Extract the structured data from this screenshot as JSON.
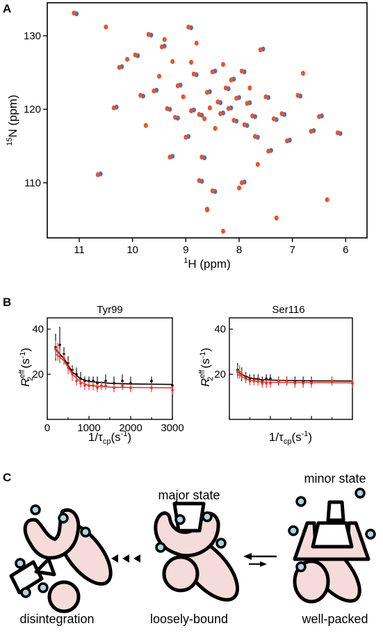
{
  "panels": {
    "A": {
      "letter": "A",
      "xlabel": "H (ppm)",
      "xlabel_sup": "1",
      "ylabel": "N (ppm)",
      "ylabel_sup": "15",
      "xticks": [
        "11",
        "10",
        "9",
        "8",
        "7",
        "6"
      ],
      "yticks": [
        "110",
        "120",
        "130"
      ],
      "colors": {
        "series1": "#e8552c",
        "series2": "#4f73b8",
        "overlap": "#8a4a8c"
      }
    },
    "B": {
      "letter": "B",
      "left": {
        "title": "Tyr99",
        "ylabel_base": "R",
        "ylabel_sup": "eff",
        "ylabel_sub": "2",
        "ylabel_unit": "(s",
        "ylabel_unit_sup": "-1",
        "ylabel_close": ")",
        "xlabel_base": "1/τ",
        "xlabel_sub": "cp",
        "xlabel_unit": "(s",
        "xlabel_unit_sup": "-1",
        "xlabel_close": ")",
        "xticks": [
          "0",
          "1000",
          "2000",
          "3000"
        ],
        "yticks": [
          "20",
          "40"
        ]
      },
      "right": {
        "title": "Ser116",
        "ylabel_base": "R",
        "ylabel_sup": "eff",
        "ylabel_sub": "2",
        "ylabel_unit": "(s",
        "ylabel_unit_sup": "-1",
        "ylabel_close": ")",
        "xlabel_base": "1/τ",
        "xlabel_sub": "cp",
        "xlabel_unit": "(s",
        "xlabel_unit_sup": "-1",
        "xlabel_close": ")",
        "yticks": [
          "20",
          "40"
        ]
      },
      "colors": {
        "black": "#000000",
        "red": "#e8322c"
      }
    },
    "C": {
      "letter": "C",
      "labels": {
        "disintegration": "disintegration",
        "loosely_bound": "loosely-bound",
        "well_packed": "well-packed",
        "major_state": "major state",
        "minor_state": "minor state"
      },
      "colors": {
        "protein": "#f5dcdb",
        "ion": "#a8d8e0"
      }
    }
  },
  "chart_data": [
    {
      "type": "scatter",
      "panel": "A",
      "title": "",
      "xlabel": "1H (ppm)",
      "ylabel": "15N (ppm)",
      "xlim": [
        11.6,
        5.6
      ],
      "ylim": [
        134.5,
        102.5
      ],
      "x_inverted": true,
      "y_inverted": true,
      "series": [
        {
          "color": "#e8552c",
          "points": [
            [
              11.1,
              133.1
            ],
            [
              10.65,
              111.1
            ],
            [
              10.25,
              125.7
            ],
            [
              10.1,
              126.8
            ],
            [
              9.95,
              127.4
            ],
            [
              9.85,
              121.9
            ],
            [
              9.75,
              117.8
            ],
            [
              9.6,
              122.5
            ],
            [
              9.5,
              124.5
            ],
            [
              9.45,
              128.5
            ],
            [
              9.4,
              129.5
            ],
            [
              9.35,
              120.1
            ],
            [
              9.25,
              126.5
            ],
            [
              9.2,
              118.9
            ],
            [
              9.15,
              123.2
            ],
            [
              9.05,
              121.7
            ],
            [
              9.0,
              116.2
            ],
            [
              8.95,
              131.2
            ],
            [
              8.9,
              126.4
            ],
            [
              8.9,
              119.8
            ],
            [
              8.85,
              124.8
            ],
            [
              8.8,
              129.0
            ],
            [
              8.75,
              119.3
            ],
            [
              8.7,
              113.5
            ],
            [
              8.65,
              118.7
            ],
            [
              8.6,
              122.3
            ],
            [
              8.55,
              120.2
            ],
            [
              8.5,
              108.9
            ],
            [
              8.5,
              125.1
            ],
            [
              8.45,
              117.4
            ],
            [
              8.4,
              121.0
            ],
            [
              8.35,
              119.4
            ],
            [
              8.3,
              103.4
            ],
            [
              8.25,
              122.9
            ],
            [
              8.2,
              120.1
            ],
            [
              8.15,
              124.0
            ],
            [
              8.1,
              118.5
            ],
            [
              8.05,
              121.5
            ],
            [
              8.0,
              109.3
            ],
            [
              7.95,
              125.2
            ],
            [
              7.9,
              117.9
            ],
            [
              7.85,
              120.8
            ],
            [
              7.8,
              122.9
            ],
            [
              7.75,
              119.1
            ],
            [
              7.7,
              116.3
            ],
            [
              7.6,
              128.1
            ],
            [
              7.5,
              121.7
            ],
            [
              7.45,
              114.3
            ],
            [
              7.35,
              118.7
            ],
            [
              7.3,
              105.2
            ],
            [
              7.2,
              119.4
            ],
            [
              7.1,
              115.7
            ],
            [
              6.9,
              121.9
            ],
            [
              6.8,
              124.9
            ],
            [
              6.65,
              117.0
            ],
            [
              6.5,
              119.0
            ],
            [
              6.35,
              107.7
            ],
            [
              6.15,
              116.8
            ],
            [
              8.6,
              106.3
            ],
            [
              8.75,
              110.3
            ],
            [
              7.95,
              110.0
            ],
            [
              9.3,
              113.5
            ],
            [
              10.35,
              120.2
            ],
            [
              10.5,
              131.2
            ],
            [
              9.7,
              130.2
            ],
            [
              8.3,
              126.1
            ],
            [
              7.65,
              112.5
            ]
          ]
        },
        {
          "color": "#4f73b8",
          "points": [
            [
              11.05,
              133.0
            ],
            [
              10.6,
              111.2
            ],
            [
              10.2,
              125.8
            ],
            [
              9.9,
              127.3
            ],
            [
              9.8,
              121.8
            ],
            [
              9.55,
              122.6
            ],
            [
              9.4,
              128.6
            ],
            [
              9.3,
              120.0
            ],
            [
              9.15,
              118.8
            ],
            [
              9.1,
              123.3
            ],
            [
              8.95,
              116.3
            ],
            [
              8.9,
              131.1
            ],
            [
              8.85,
              119.9
            ],
            [
              8.8,
              124.7
            ],
            [
              8.7,
              119.2
            ],
            [
              8.65,
              113.4
            ],
            [
              8.55,
              122.4
            ],
            [
              8.45,
              108.8
            ],
            [
              8.45,
              125.2
            ],
            [
              8.35,
              120.9
            ],
            [
              8.3,
              119.5
            ],
            [
              8.2,
              122.8
            ],
            [
              8.15,
              120.2
            ],
            [
              8.1,
              124.1
            ],
            [
              8.05,
              118.4
            ],
            [
              8.0,
              121.6
            ],
            [
              7.9,
              125.1
            ],
            [
              7.85,
              117.8
            ],
            [
              7.8,
              120.9
            ],
            [
              7.7,
              119.0
            ],
            [
              7.65,
              116.2
            ],
            [
              7.55,
              128.2
            ],
            [
              7.45,
              121.6
            ],
            [
              7.4,
              114.4
            ],
            [
              7.3,
              118.6
            ],
            [
              7.15,
              119.3
            ],
            [
              7.05,
              115.8
            ],
            [
              6.85,
              121.8
            ],
            [
              6.6,
              117.1
            ],
            [
              6.45,
              119.1
            ],
            [
              6.1,
              116.7
            ],
            [
              8.6,
              106.4
            ],
            [
              8.7,
              110.2
            ],
            [
              7.9,
              110.1
            ],
            [
              9.25,
              113.6
            ],
            [
              10.3,
              120.3
            ],
            [
              9.65,
              130.1
            ]
          ]
        }
      ]
    },
    {
      "type": "scatter",
      "panel": "B-left",
      "title": "Tyr99",
      "xlabel": "1/τcp(s-1)",
      "ylabel": "R2eff(s-1)",
      "xlim": [
        0,
        3000
      ],
      "ylim": [
        0,
        45
      ],
      "series": [
        {
          "color": "#000000",
          "points": [
            [
              200,
              32
            ],
            [
              300,
              33
            ],
            [
              400,
              29
            ],
            [
              500,
              25
            ],
            [
              600,
              22
            ],
            [
              700,
              20
            ],
            [
              800,
              18
            ],
            [
              900,
              17
            ],
            [
              1000,
              17
            ],
            [
              1100,
              17
            ],
            [
              1200,
              16
            ],
            [
              1400,
              17
            ],
            [
              1600,
              16
            ],
            [
              1800,
              17
            ],
            [
              2000,
              16
            ],
            [
              2500,
              17
            ],
            [
              3000,
              15
            ]
          ],
          "errors": [
            6,
            8,
            3,
            3,
            2,
            3,
            3,
            2,
            2,
            2,
            3,
            3,
            3,
            3,
            3,
            2,
            2
          ],
          "fit": [
            [
              200,
              31
            ],
            [
              400,
              27
            ],
            [
              600,
              21
            ],
            [
              800,
              18
            ],
            [
              1000,
              16.8
            ],
            [
              1500,
              16
            ],
            [
              2000,
              15.7
            ],
            [
              3000,
              15.5
            ]
          ]
        },
        {
          "color": "#e8322c",
          "points": [
            [
              200,
              31
            ],
            [
              250,
              30
            ],
            [
              300,
              28
            ],
            [
              400,
              27
            ],
            [
              500,
              23
            ],
            [
              600,
              20
            ],
            [
              700,
              17
            ],
            [
              800,
              16
            ],
            [
              900,
              15
            ],
            [
              1000,
              15
            ],
            [
              1100,
              15
            ],
            [
              1200,
              14
            ],
            [
              1300,
              15
            ],
            [
              1400,
              15
            ],
            [
              1600,
              14
            ],
            [
              1800,
              15
            ],
            [
              2000,
              14
            ],
            [
              2500,
              14
            ],
            [
              3000,
              13
            ]
          ],
          "errors": [
            4,
            4,
            3,
            3,
            3,
            3,
            2,
            2,
            2,
            2,
            2,
            2,
            2,
            2,
            2,
            2,
            2,
            2,
            2
          ],
          "fit": [
            [
              200,
              29
            ],
            [
              400,
              26
            ],
            [
              600,
              20
            ],
            [
              800,
              16.5
            ],
            [
              1000,
              15
            ],
            [
              1500,
              14.3
            ],
            [
              2000,
              14.1
            ],
            [
              3000,
              14
            ]
          ]
        }
      ]
    },
    {
      "type": "scatter",
      "panel": "B-right",
      "title": "Ser116",
      "xlabel": "1/τcp(s-1)",
      "ylabel": "R2eff(s-1)",
      "xlim": [
        0,
        3000
      ],
      "ylim": [
        0,
        45
      ],
      "series": [
        {
          "color": "#000000",
          "points": [
            [
              200,
              22
            ],
            [
              300,
              20
            ],
            [
              400,
              19
            ],
            [
              500,
              18
            ],
            [
              600,
              18
            ],
            [
              700,
              18
            ],
            [
              800,
              17
            ],
            [
              900,
              18
            ],
            [
              1000,
              18
            ],
            [
              1200,
              17
            ],
            [
              1400,
              17
            ],
            [
              1600,
              17
            ],
            [
              1800,
              17
            ],
            [
              2000,
              17
            ],
            [
              2500,
              17
            ],
            [
              3000,
              16
            ]
          ],
          "errors": [
            3,
            3,
            2,
            2,
            2,
            2,
            2,
            2,
            2,
            2,
            2,
            2,
            2,
            2,
            2,
            2
          ],
          "fit": [
            [
              200,
              21
            ],
            [
              400,
              19
            ],
            [
              600,
              18
            ],
            [
              800,
              17.6
            ],
            [
              1200,
              17.3
            ],
            [
              2000,
              17.1
            ],
            [
              3000,
              17
            ]
          ]
        },
        {
          "color": "#e8322c",
          "points": [
            [
              200,
              21
            ],
            [
              250,
              21
            ],
            [
              300,
              20
            ],
            [
              400,
              18
            ],
            [
              500,
              17
            ],
            [
              600,
              17
            ],
            [
              700,
              17
            ],
            [
              800,
              16
            ],
            [
              900,
              16
            ],
            [
              1000,
              16
            ],
            [
              1200,
              17
            ],
            [
              1400,
              17
            ],
            [
              1600,
              16
            ],
            [
              1800,
              16
            ],
            [
              2000,
              16
            ],
            [
              2500,
              17
            ],
            [
              3000,
              16
            ]
          ],
          "errors": [
            3,
            3,
            2,
            2,
            2,
            2,
            2,
            2,
            2,
            2,
            2,
            2,
            2,
            2,
            2,
            2,
            2
          ],
          "fit": [
            [
              200,
              20
            ],
            [
              400,
              18
            ],
            [
              600,
              17
            ],
            [
              800,
              16.6
            ],
            [
              1200,
              16.4
            ],
            [
              2000,
              16.3
            ],
            [
              3000,
              16.2
            ]
          ]
        }
      ]
    }
  ]
}
